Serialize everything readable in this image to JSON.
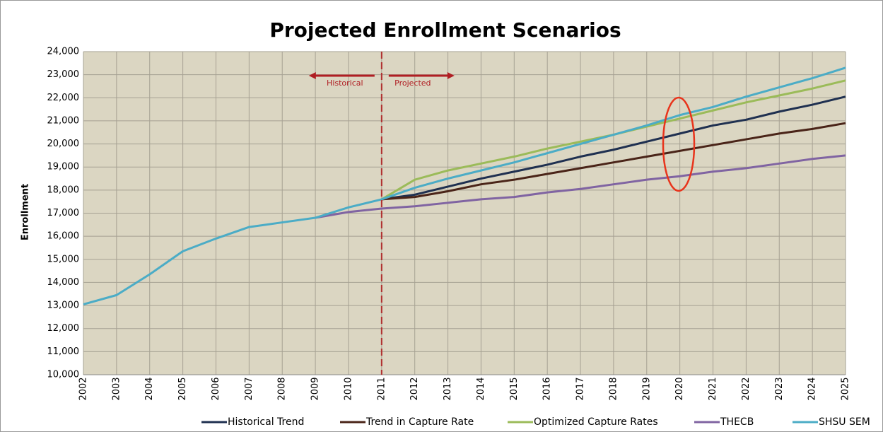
{
  "chart_data": {
    "type": "line",
    "title": "Projected Enrollment Scenarios",
    "y_label": "Enrollment",
    "annotations": [
      "Historical",
      "Projected"
    ],
    "divider_x": 2011,
    "x": [
      2002,
      2003,
      2004,
      2005,
      2006,
      2007,
      2008,
      2009,
      2010,
      2011,
      2012,
      2013,
      2014,
      2015,
      2016,
      2017,
      2018,
      2019,
      2020,
      2021,
      2022,
      2023,
      2024,
      2025
    ],
    "xlim": [
      2002,
      2025
    ],
    "xticks": [
      2002,
      2003,
      2004,
      2005,
      2006,
      2007,
      2008,
      2009,
      2010,
      2011,
      2012,
      2013,
      2014,
      2015,
      2016,
      2017,
      2018,
      2019,
      2020,
      2021,
      2022,
      2023,
      2024,
      2025
    ],
    "ylim": [
      10000,
      24000
    ],
    "yticks": [
      {
        "value": 10000,
        "label": "10,000"
      },
      {
        "value": 11000,
        "label": "11,000"
      },
      {
        "value": 12000,
        "label": "12,000"
      },
      {
        "value": 13000,
        "label": "13,000"
      },
      {
        "value": 14000,
        "label": "14,000"
      },
      {
        "value": 15000,
        "label": "15,000"
      },
      {
        "value": 16000,
        "label": "16,000"
      },
      {
        "value": 17000,
        "label": "17,000"
      },
      {
        "value": 18000,
        "label": "18,000"
      },
      {
        "value": 19000,
        "label": "19,000"
      },
      {
        "value": 20000,
        "label": "20,000"
      },
      {
        "value": 21000,
        "label": "21,000"
      },
      {
        "value": 22000,
        "label": "22,000"
      },
      {
        "value": 23000,
        "label": "23,000"
      },
      {
        "value": 24000,
        "label": "24,000"
      }
    ],
    "grid": true,
    "legend": "bottom",
    "series": [
      {
        "name": "Historical Trend",
        "color": "#1f3050",
        "values": [
          null,
          null,
          null,
          null,
          null,
          null,
          null,
          null,
          null,
          17600,
          17800,
          18150,
          18500,
          18800,
          19100,
          19450,
          19750,
          20100,
          20450,
          20800,
          21050,
          21400,
          21700,
          22050
        ]
      },
      {
        "name": "Trend in Capture Rate",
        "color": "#4a2418",
        "values": [
          null,
          null,
          null,
          null,
          null,
          null,
          null,
          null,
          null,
          17600,
          17700,
          17950,
          18250,
          18450,
          18700,
          18950,
          19200,
          19450,
          19700,
          19950,
          20200,
          20450,
          20650,
          20900
        ]
      },
      {
        "name": "Optimized Capture Rates",
        "color": "#9bbb59",
        "values": [
          null,
          null,
          null,
          null,
          null,
          null,
          null,
          null,
          null,
          17600,
          18450,
          18850,
          19150,
          19450,
          19800,
          20100,
          20400,
          20750,
          21100,
          21450,
          21800,
          22100,
          22400,
          22750
        ]
      },
      {
        "name": "THECB",
        "color": "#8064a2",
        "values": [
          null,
          null,
          null,
          null,
          null,
          null,
          null,
          16800,
          17050,
          17200,
          17300,
          17450,
          17600,
          17700,
          17900,
          18050,
          18250,
          18450,
          18600,
          18800,
          18950,
          19150,
          19350,
          19500
        ]
      },
      {
        "name": "SHSU SEM",
        "color": "#4bacc6",
        "values": [
          13050,
          13450,
          14350,
          15350,
          15900,
          16400,
          16600,
          16800,
          17250,
          17600,
          18100,
          18500,
          18850,
          19200,
          19600,
          20000,
          20400,
          20800,
          21250,
          21600,
          22050,
          22450,
          22850,
          23300
        ]
      }
    ]
  }
}
